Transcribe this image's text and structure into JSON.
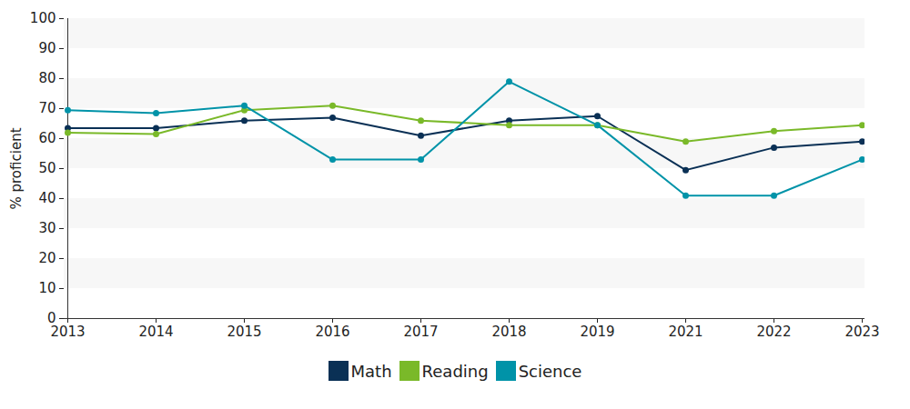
{
  "chart_data": {
    "type": "line",
    "y_label": "% proficient",
    "categories": [
      "2013",
      "2014",
      "2015",
      "2016",
      "2017",
      "2018",
      "2019",
      "2021",
      "2022",
      "2023"
    ],
    "series": [
      {
        "name": "Math",
        "color": "#0a3055",
        "values": [
          63.5,
          63.5,
          66,
          67,
          61,
          66,
          67.5,
          49.5,
          57,
          59
        ]
      },
      {
        "name": "Reading",
        "color": "#7ab929",
        "values": [
          62,
          61.5,
          69.5,
          71,
          66,
          64.5,
          64.5,
          59,
          62.5,
          64.5
        ]
      },
      {
        "name": "Science",
        "color": "#0093a8",
        "values": [
          69.5,
          68.5,
          71,
          53,
          53,
          79,
          64.5,
          41,
          41,
          53
        ]
      }
    ],
    "ylim": [
      0,
      100
    ],
    "yticks": [
      0,
      10,
      20,
      30,
      40,
      50,
      60,
      70,
      80,
      90,
      100
    ],
    "grid": true,
    "marker": "circle",
    "legend": "bottom"
  }
}
